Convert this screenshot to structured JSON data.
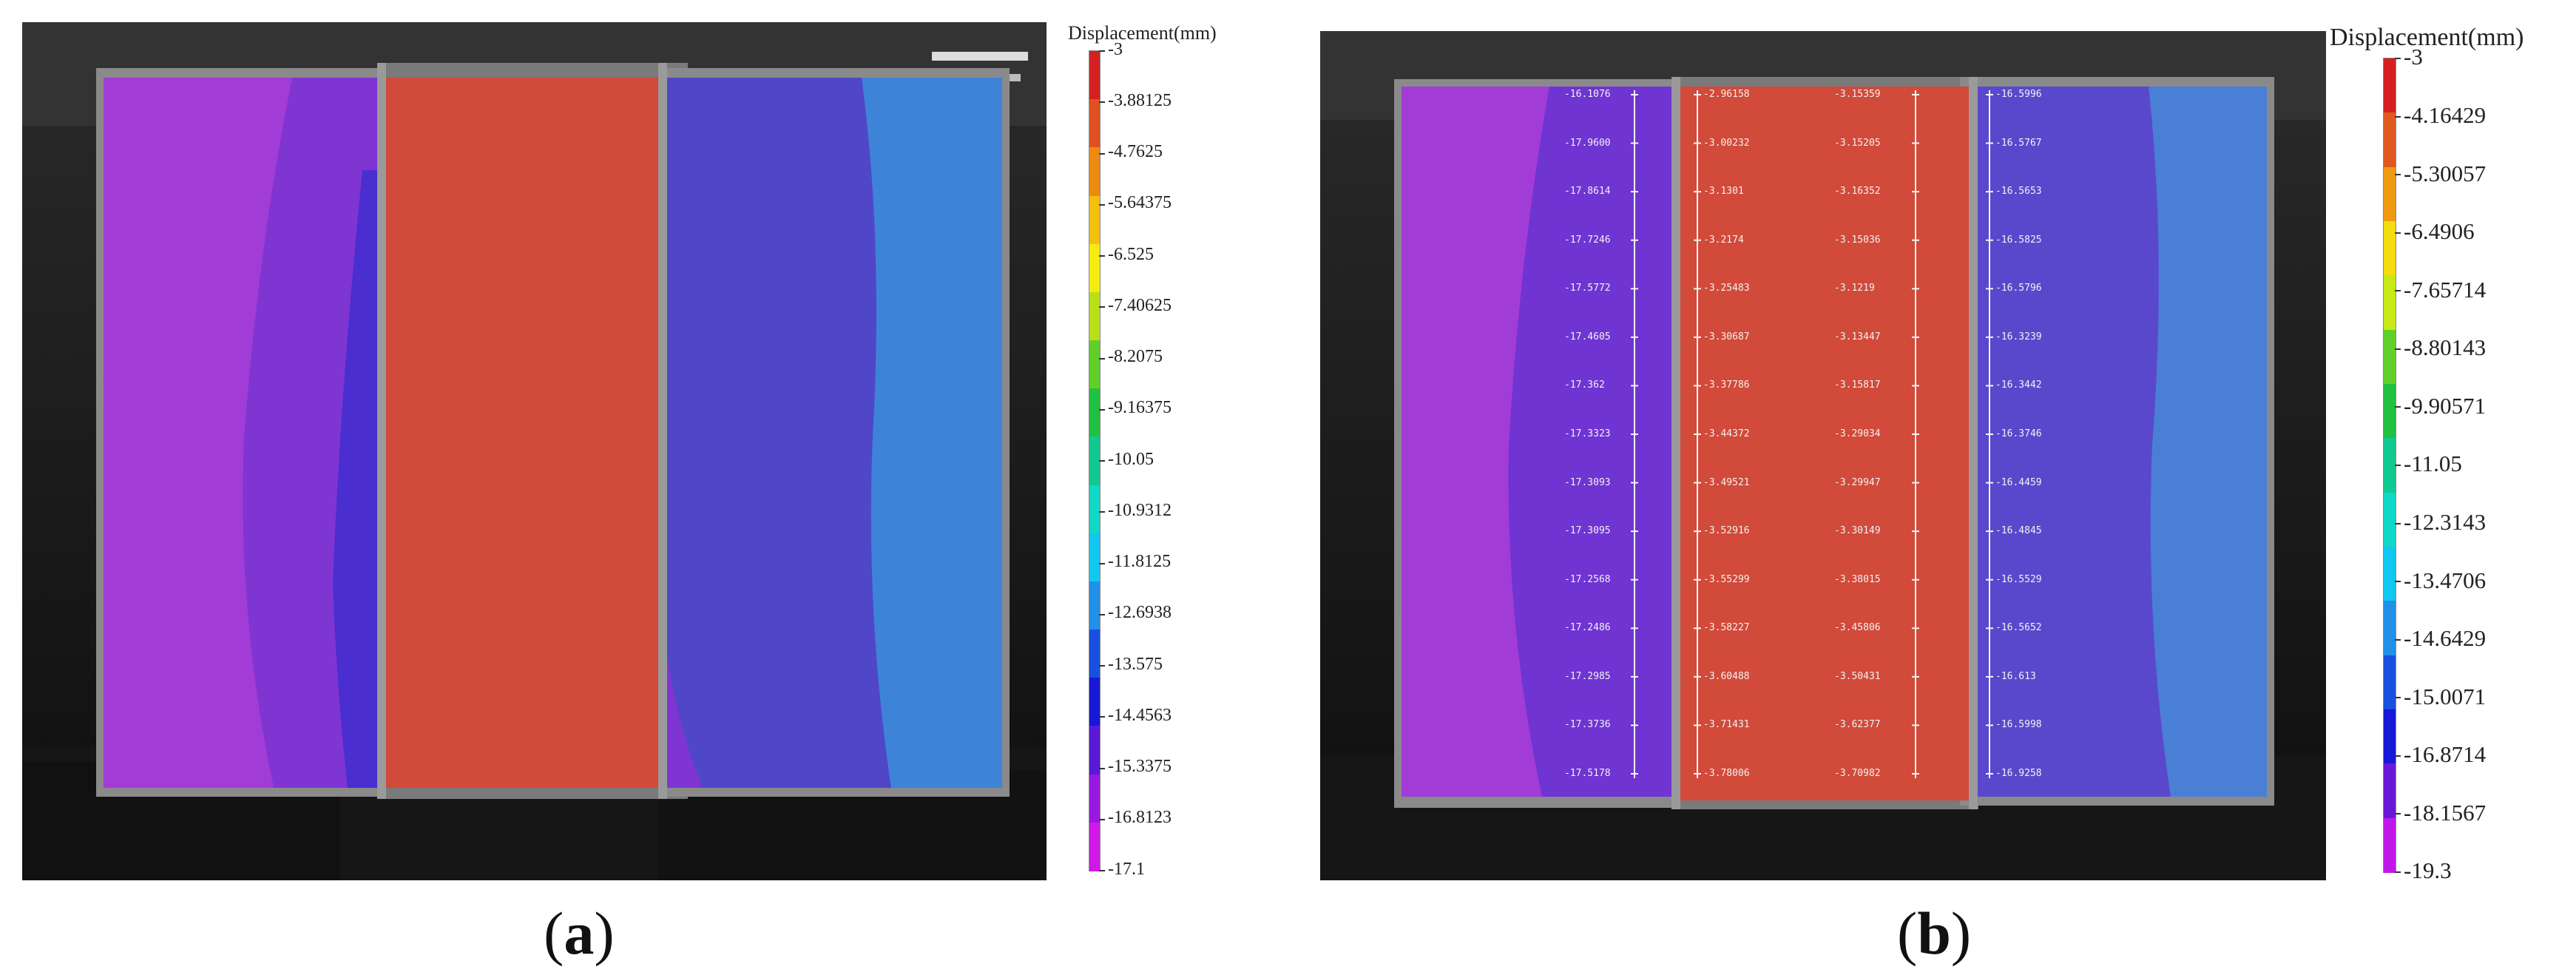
{
  "panel_a": {
    "caption_open": "(",
    "caption_letter": "a",
    "caption_close": ")",
    "legend": {
      "title": "Displacement(mm)",
      "ticks": [
        "-3",
        "-3.88125",
        "-4.7625",
        "-5.64375",
        "-6.525",
        "-7.40625",
        "-8.2075",
        "-9.16375",
        "-10.05",
        "-10.9312",
        "-11.8125",
        "-12.6938",
        "-13.575",
        "-14.4563",
        "-15.3375",
        "-16.8123",
        "-17.1"
      ],
      "colors": [
        "#d42020",
        "#e05020",
        "#ee8a10",
        "#f4c010",
        "#f4ec10",
        "#b8e018",
        "#60d028",
        "#20c040",
        "#10c890",
        "#10d8c8",
        "#10c8f0",
        "#2090e8",
        "#1850e0",
        "#1818d8",
        "#5a18d8",
        "#9a18e0",
        "#d018e8"
      ]
    }
  },
  "panel_b": {
    "caption_open": "(",
    "caption_letter": "b",
    "caption_close": ")",
    "legend": {
      "title": "Displacement(mm)",
      "ticks": [
        "-3",
        "-4.16429",
        "-5.30057",
        "-6.4906",
        "-7.65714",
        "-8.80143",
        "-9.90571",
        "-11.05",
        "-12.3143",
        "-13.4706",
        "-14.6429",
        "-15.0071",
        "-16.8714",
        "-18.1567",
        "-19.3"
      ],
      "colors": [
        "#d42020",
        "#e05a20",
        "#ee9a10",
        "#f4dc10",
        "#c8e818",
        "#60d028",
        "#20c040",
        "#10c890",
        "#10d8c8",
        "#10c8f0",
        "#2090e8",
        "#1850e0",
        "#1818d8",
        "#6a18d8",
        "#c018e8"
      ]
    },
    "probe_columns": [
      [
        "-16.1076",
        "-17.9600",
        "-17.8614",
        "-17.7246",
        "-17.5772",
        "-17.4605",
        "-17.362",
        "-17.3323",
        "-17.3093",
        "-17.3095",
        "-17.2568",
        "-17.2486",
        "-17.2985",
        "-17.3736",
        "-17.5178"
      ],
      [
        "-2.96158",
        "-3.00232",
        "-3.1301",
        "-3.2174",
        "-3.25483",
        "-3.30687",
        "-3.37786",
        "-3.44372",
        "-3.49521",
        "-3.52916",
        "-3.55299",
        "-3.58227",
        "-3.60488",
        "-3.71431",
        "-3.78006"
      ],
      [
        "-3.15359",
        "-3.15205",
        "-3.16352",
        "-3.15036",
        "-3.1219",
        "-3.13447",
        "-3.15817",
        "-3.29034",
        "-3.29947",
        "-3.30149",
        "-3.38015",
        "-3.45806",
        "-3.50431",
        "-3.62377",
        "-3.70982"
      ],
      [
        "-16.5996",
        "-16.5767",
        "-16.5653",
        "-16.5825",
        "-16.5796",
        "-16.3239",
        "-16.3442",
        "-16.3746",
        "-16.4459",
        "-16.4845",
        "-16.5529",
        "-16.5652",
        "-16.613",
        "-16.5998",
        "-16.9258"
      ]
    ]
  }
}
